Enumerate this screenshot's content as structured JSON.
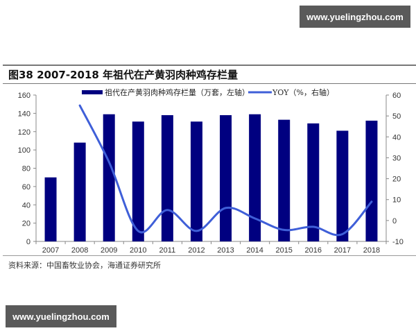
{
  "watermarks": {
    "top": "www.yuelingzhou.com",
    "bottom": "www.yuelingzhou.com"
  },
  "figure": {
    "title": "图38 2007-2018 年祖代在产黄羽肉种鸡存栏量",
    "source": "资料来源：中国畜牧业协会，海通证券研究所"
  },
  "legend": {
    "bar_label": "祖代在产黄羽肉种鸡存栏量（万套，左轴）",
    "line_label": "YOY（%，右轴）"
  },
  "colors": {
    "bar": "#000080",
    "line": "#3f5fd8",
    "axis": "#888888"
  },
  "chart_data": {
    "type": "bar",
    "title": "图38 2007-2018 年祖代在产黄羽肉种鸡存栏量",
    "xlabel": "",
    "ylabel": "万套",
    "y2label": "%",
    "categories": [
      "2007",
      "2008",
      "2009",
      "2010",
      "2011",
      "2012",
      "2013",
      "2014",
      "2015",
      "2016",
      "2017",
      "2018"
    ],
    "series": [
      {
        "name": "祖代在产黄羽肉种鸡存栏量（万套，左轴）",
        "type": "bar",
        "axis": "left",
        "values": [
          70,
          108,
          139,
          131,
          138,
          131,
          138,
          139,
          133,
          129,
          121,
          132
        ]
      },
      {
        "name": "YOY（%，右轴）",
        "type": "line",
        "axis": "right",
        "values": [
          null,
          55,
          28,
          -5,
          5,
          -5,
          6,
          1,
          -4.5,
          -3,
          -6.5,
          9
        ]
      }
    ],
    "ylim": [
      0,
      160
    ],
    "y_ticks": [
      0,
      20,
      40,
      60,
      80,
      100,
      120,
      140,
      160
    ],
    "y2lim": [
      -10,
      60
    ],
    "y2_ticks": [
      -10,
      0,
      10,
      20,
      30,
      40,
      50,
      60
    ],
    "grid": false,
    "legend_position": "top"
  }
}
